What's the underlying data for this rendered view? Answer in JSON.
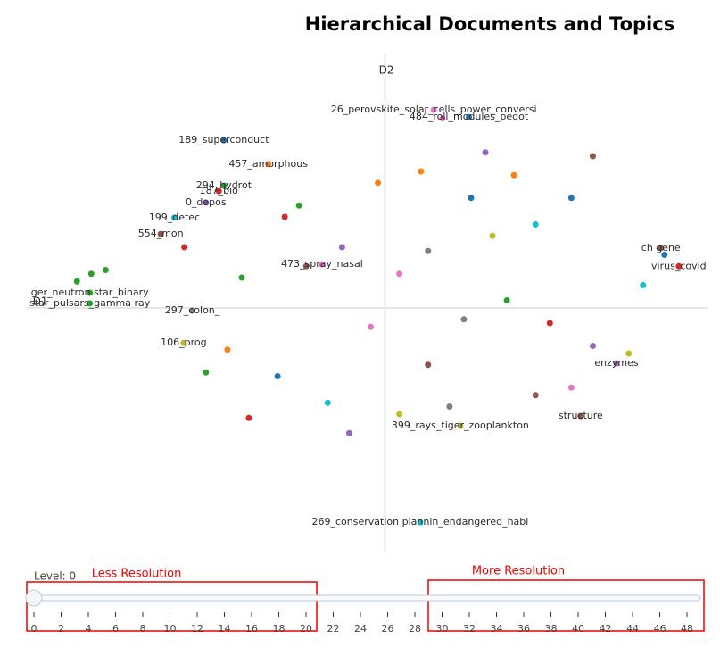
{
  "chart_data": {
    "type": "scatter",
    "title": "Hierarchical Documents and Topics",
    "x_label": "D1",
    "y_label": "D2",
    "xlim": [
      -5,
      4.5
    ],
    "ylim": [
      -6,
      6
    ],
    "x": [
      0.68,
      1.17,
      -2.25,
      -1.63,
      -2.25,
      -2.32,
      -2.5,
      -2.94,
      -3.13,
      -0.88,
      -2.69,
      -2.81,
      1.05,
      0.49,
      -4.12,
      -4.12,
      3.85,
      4.1,
      3.23,
      2.73,
      -4.1,
      -3.9,
      -4.3,
      0.8,
      1.2,
      0.5,
      -1.2,
      -1.4,
      -0.6,
      -1.1,
      0.2,
      0.6,
      1.5,
      2.1,
      2.6,
      1.8,
      1.7,
      2.3,
      2.9,
      2.1,
      2.6,
      0.9,
      0.2,
      -0.8,
      -1.5,
      -2.2,
      -2.5,
      -1.9,
      -0.5,
      0.6,
      -0.2,
      1.1,
      3.4,
      3.6,
      3.9,
      -0.1,
      -2.0,
      -2.8,
      1.4,
      2.9
    ],
    "y": [
      5.22,
      5.03,
      4.42,
      3.79,
      3.22,
      3.08,
      2.78,
      2.38,
      1.95,
      1.15,
      -0.07,
      -0.92,
      -3.11,
      -5.65,
      0.12,
      0.4,
      1.58,
      1.1,
      -1.46,
      -2.85,
      0.9,
      1.0,
      0.7,
      5.0,
      2.9,
      3.6,
      2.7,
      2.4,
      1.6,
      1.1,
      0.9,
      1.5,
      1.9,
      2.2,
      2.9,
      3.5,
      0.2,
      -0.4,
      -1.0,
      -2.3,
      -2.1,
      -2.6,
      -2.8,
      -2.5,
      -1.8,
      -1.1,
      -1.7,
      -2.9,
      -3.3,
      -1.5,
      -0.5,
      -0.3,
      -1.2,
      0.6,
      1.4,
      3.3,
      0.8,
      1.6,
      4.1,
      4.0
    ],
    "labels": [
      "26_perovskite_solar_cells_power_conversi",
      "484_roll_modules_pedot",
      "189_superconduct",
      "457_amorphous",
      "294_hydrot",
      "187_bio",
      "0_depos",
      "199_detec",
      "554_mon",
      "473_spray_nasal",
      "297_colon_",
      "106_prog",
      "399_rays_tiger_zooplankton",
      "269_conservation plannin_endangered_habi",
      "star_pulsars_gamma ray",
      "ger_neutron star_binary",
      "ch gene",
      "virus_covid",
      "enzymes",
      "structure",
      null,
      null,
      null,
      null,
      null,
      null,
      null,
      null,
      null,
      null,
      null,
      null,
      null,
      null,
      null,
      null,
      null,
      null,
      null,
      null,
      null,
      null,
      null,
      null,
      null,
      null,
      null,
      null,
      null,
      null,
      null,
      null,
      null,
      null,
      null,
      null,
      null,
      null,
      null,
      null
    ],
    "colors": [
      "#e377c2",
      "#1f77b4",
      "#1f77b4",
      "#ff7f0e",
      "#2ca02c",
      "#d62728",
      "#9467bd",
      "#17becf",
      "#8c564b",
      "#e377c2",
      "#7f7f7f",
      "#bcbd22",
      "#bcbd22",
      "#17becf",
      "#2ca02c",
      "#2ca02c",
      "#8c564b",
      "#d62728",
      "#9467bd",
      "#8c564b",
      "#2ca02c",
      "#2ca02c",
      "#2ca02c",
      "#e377c2",
      "#1f77b4",
      "#ff7f0e",
      "#2ca02c",
      "#d62728",
      "#9467bd",
      "#8c564b",
      "#e377c2",
      "#7f7f7f",
      "#bcbd22",
      "#17becf",
      "#1f77b4",
      "#ff7f0e",
      "#2ca02c",
      "#d62728",
      "#9467bd",
      "#8c564b",
      "#e377c2",
      "#7f7f7f",
      "#bcbd22",
      "#17becf",
      "#1f77b4",
      "#ff7f0e",
      "#2ca02c",
      "#d62728",
      "#9467bd",
      "#8c564b",
      "#e377c2",
      "#7f7f7f",
      "#bcbd22",
      "#17becf",
      "#1f77b4",
      "#ff7f0e",
      "#2ca02c",
      "#d62728",
      "#9467bd",
      "#8c564b"
    ]
  },
  "slider": {
    "label": "Level: 0",
    "ticks": [
      0,
      2,
      4,
      6,
      8,
      10,
      12,
      14,
      16,
      18,
      20,
      22,
      24,
      26,
      28,
      30,
      32,
      34,
      36,
      38,
      40,
      42,
      44,
      46,
      48
    ]
  },
  "annotations": [
    "Less Resolution",
    "More Resolution"
  ]
}
